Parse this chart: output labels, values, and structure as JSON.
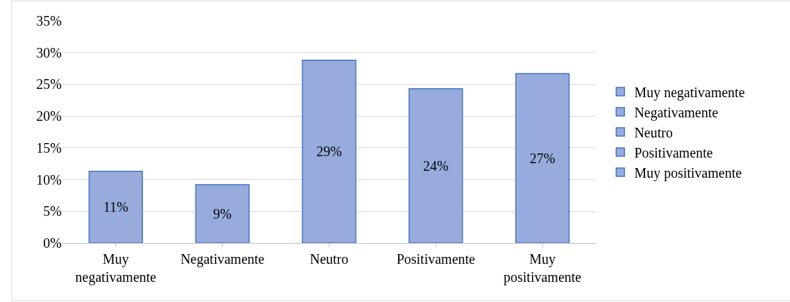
{
  "chart_data": {
    "type": "bar",
    "categories": [
      "Muy negativamente",
      "Negativamente",
      "Neutro",
      "Positivamente",
      "Muy positivamente"
    ],
    "series": [
      {
        "name": "Muy negativamente",
        "color": "#97acdd",
        "values": [
          11.3,
          null,
          null,
          null,
          null
        ]
      },
      {
        "name": "Negativamente",
        "color": "#97acdd",
        "values": [
          null,
          9.2,
          null,
          null,
          null
        ]
      },
      {
        "name": "Neutro",
        "color": "#97acdd",
        "values": [
          null,
          null,
          28.8,
          null,
          null
        ]
      },
      {
        "name": "Positivamente",
        "color": "#97acdd",
        "values": [
          null,
          null,
          null,
          24.3,
          null
        ]
      },
      {
        "name": "Muy positivamente",
        "color": "#97acdd",
        "values": [
          null,
          null,
          null,
          null,
          26.7
        ]
      }
    ],
    "value_labels": [
      "11%",
      "9%",
      "29%",
      "24%",
      "27%"
    ],
    "ylim": [
      0,
      35
    ],
    "yticks": [
      {
        "value": 0,
        "label": "0%"
      },
      {
        "value": 5,
        "label": "5%"
      },
      {
        "value": 10,
        "label": "10%"
      },
      {
        "value": 15,
        "label": "15%"
      },
      {
        "value": 20,
        "label": "20%"
      },
      {
        "value": 25,
        "label": "25%"
      },
      {
        "value": 30,
        "label": "30%"
      },
      {
        "value": 35,
        "label": "35%"
      }
    ],
    "grid": "y",
    "legend": "right"
  }
}
